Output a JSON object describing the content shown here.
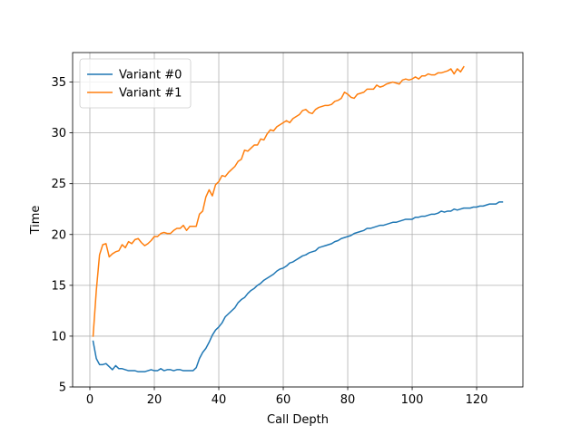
{
  "chart_data": {
    "type": "line",
    "xlabel": "Call Depth",
    "ylabel": "Time",
    "x": [
      1,
      2,
      3,
      4,
      5,
      6,
      7,
      8,
      9,
      10,
      11,
      12,
      13,
      14,
      15,
      16,
      17,
      18,
      19,
      20,
      21,
      22,
      23,
      24,
      25,
      26,
      27,
      28,
      29,
      30,
      31,
      32,
      33,
      34,
      35,
      36,
      37,
      38,
      39,
      40,
      41,
      42,
      43,
      44,
      45,
      46,
      47,
      48,
      49,
      50,
      51,
      52,
      53,
      54,
      55,
      56,
      57,
      58,
      59,
      60,
      61,
      62,
      63,
      64,
      65,
      66,
      67,
      68,
      69,
      70,
      71,
      72,
      73,
      74,
      75,
      76,
      77,
      78,
      79,
      80,
      81,
      82,
      83,
      84,
      85,
      86,
      87,
      88,
      89,
      90,
      91,
      92,
      93,
      94,
      95,
      96,
      97,
      98,
      99,
      100,
      101,
      102,
      103,
      104,
      105,
      106,
      107,
      108,
      109,
      110,
      111,
      112,
      113,
      114,
      115,
      116,
      117,
      118,
      119,
      120,
      121,
      122,
      123,
      124,
      125,
      126,
      127,
      128
    ],
    "series": [
      {
        "name": "Variant #0",
        "color": "#1f77b4",
        "values": [
          9.5,
          7.8,
          7.2,
          7.2,
          7.3,
          7.0,
          6.7,
          7.1,
          6.8,
          6.8,
          6.7,
          6.6,
          6.6,
          6.6,
          6.5,
          6.5,
          6.5,
          6.6,
          6.7,
          6.6,
          6.6,
          6.8,
          6.6,
          6.7,
          6.7,
          6.6,
          6.7,
          6.7,
          6.6,
          6.6,
          6.6,
          6.6,
          6.9,
          7.8,
          8.4,
          8.8,
          9.4,
          10.1,
          10.6,
          10.9,
          11.3,
          11.9,
          12.2,
          12.5,
          12.8,
          13.3,
          13.6,
          13.8,
          14.2,
          14.5,
          14.7,
          15.0,
          15.2,
          15.5,
          15.7,
          15.9,
          16.1,
          16.4,
          16.6,
          16.7,
          16.9,
          17.2,
          17.3,
          17.5,
          17.7,
          17.9,
          18.0,
          18.2,
          18.3,
          18.4,
          18.7,
          18.8,
          18.9,
          19.0,
          19.1,
          19.3,
          19.4,
          19.6,
          19.7,
          19.8,
          19.9,
          20.1,
          20.2,
          20.3,
          20.4,
          20.6,
          20.6,
          20.7,
          20.8,
          20.9,
          20.9,
          21.0,
          21.1,
          21.2,
          21.2,
          21.3,
          21.4,
          21.5,
          21.5,
          21.5,
          21.7,
          21.7,
          21.8,
          21.8,
          21.9,
          22.0,
          22.0,
          22.1,
          22.3,
          22.2,
          22.3,
          22.3,
          22.5,
          22.4,
          22.5,
          22.6,
          22.6,
          22.6,
          22.7,
          22.7,
          22.8,
          22.8,
          22.9,
          23.0,
          23.0,
          23.0,
          23.2,
          23.2
        ]
      },
      {
        "name": "Variant #1",
        "color": "#ff7f0e",
        "values": [
          10.0,
          14.5,
          18.0,
          19.0,
          19.1,
          17.8,
          18.1,
          18.3,
          18.4,
          19.0,
          18.7,
          19.3,
          19.1,
          19.5,
          19.6,
          19.2,
          18.9,
          19.1,
          19.4,
          19.8,
          19.8,
          20.1,
          20.2,
          20.1,
          20.1,
          20.4,
          20.6,
          20.6,
          20.9,
          20.4,
          20.8,
          20.8,
          20.8,
          22.0,
          22.3,
          23.7,
          24.4,
          23.8,
          24.9,
          25.2,
          25.8,
          25.7,
          26.1,
          26.4,
          26.7,
          27.2,
          27.4,
          28.3,
          28.2,
          28.5,
          28.8,
          28.8,
          29.4,
          29.3,
          29.9,
          30.3,
          30.2,
          30.6,
          30.8,
          31.0,
          31.2,
          31.0,
          31.4,
          31.6,
          31.8,
          32.2,
          32.3,
          32.0,
          31.9,
          32.3,
          32.5,
          32.6,
          32.7,
          32.7,
          32.8,
          33.1,
          33.2,
          33.4,
          34.0,
          33.8,
          33.5,
          33.4,
          33.8,
          33.9,
          34.0,
          34.3,
          34.3,
          34.3,
          34.7,
          34.5,
          34.6,
          34.8,
          34.9,
          35.0,
          34.9,
          34.8,
          35.2,
          35.3,
          35.2,
          35.3,
          35.5,
          35.3,
          35.6,
          35.6,
          35.8,
          35.7,
          35.7,
          35.9,
          35.9,
          36.0,
          36.1,
          36.3,
          35.8,
          36.3,
          36.0,
          36.5,
          null,
          null,
          null,
          null,
          null,
          null,
          null,
          null,
          null,
          null,
          null,
          null
        ]
      }
    ],
    "xlim": [
      -5.35,
      134.35
    ],
    "ylim": [
      5,
      37.9
    ],
    "xticks": [
      0,
      20,
      40,
      60,
      80,
      100,
      120
    ],
    "yticks": [
      5,
      10,
      15,
      20,
      25,
      30,
      35
    ],
    "grid": true,
    "legend": "upper left"
  }
}
